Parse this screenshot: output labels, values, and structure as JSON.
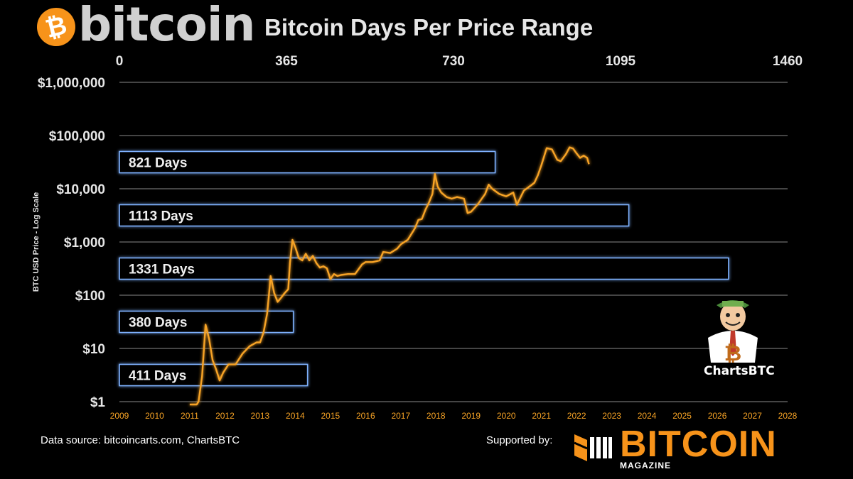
{
  "header": {
    "brand_symbol": "₿",
    "brand_word": "bitcoin",
    "title": "Bitcoin Days Per Price Range"
  },
  "footer": {
    "data_source": "Data source: bitcoincarts.com, ChartsBTC",
    "supported_by": "Supported by:",
    "magazine_word": "BITCOIN",
    "magazine_sub": "MAGAZINE"
  },
  "mascot": {
    "label": "ChartsBTC",
    "icon": "cartoon-trader-mascot-icon"
  },
  "colors": {
    "background": "#000000",
    "price_line": "#f7a325",
    "bar_border": "#4f7fc8",
    "bar_glow": "#7fb2ff",
    "grid": "#8a8a8a",
    "year_label": "#f7a325",
    "brand_orange": "#f7931a"
  },
  "chart_data": {
    "type": "line",
    "title": "Bitcoin Days Per Price Range",
    "ylabel": "BTC USD Price - Log Scale",
    "y_scale": "log",
    "ylim": [
      1,
      1000000
    ],
    "y_ticks": [
      1,
      10,
      100,
      1000,
      10000,
      100000,
      1000000
    ],
    "y_tick_labels": [
      "$1",
      "$10",
      "$100",
      "$1,000",
      "$10,000",
      "$100,000",
      "$1,000,000"
    ],
    "xlim": [
      2009,
      2028
    ],
    "x_ticks": [
      2009,
      2010,
      2011,
      2012,
      2013,
      2014,
      2015,
      2016,
      2017,
      2018,
      2019,
      2020,
      2021,
      2022,
      2023,
      2024,
      2025,
      2026,
      2027,
      2028
    ],
    "top_axis": {
      "label_type": "days",
      "range": [
        0,
        1460
      ],
      "ticks": [
        0,
        365,
        730,
        1095,
        1460
      ]
    },
    "grid": "horizontal",
    "days_bars": [
      {
        "label": "821 Days",
        "days": 821,
        "price_min": 10000,
        "price_max": 100000
      },
      {
        "label": "1113 Days",
        "days": 1113,
        "price_min": 1000,
        "price_max": 10000
      },
      {
        "label": "1331 Days",
        "days": 1331,
        "price_min": 100,
        "price_max": 1000
      },
      {
        "label": "380 Days",
        "days": 380,
        "price_min": 10,
        "price_max": 100
      },
      {
        "label": "411 Days",
        "days": 411,
        "price_min": 1,
        "price_max": 10
      }
    ],
    "series": [
      {
        "x": [
          2011.0,
          2011.2,
          2011.25,
          2011.35,
          2011.45,
          2011.55,
          2011.65,
          2011.75,
          2011.85,
          2011.95,
          2012.1,
          2012.3,
          2012.5,
          2012.7,
          2012.9,
          2013.0,
          2013.1,
          2013.2,
          2013.25,
          2013.3,
          2013.4,
          2013.5,
          2013.6,
          2013.7,
          2013.8,
          2013.85,
          2013.92,
          2014.0,
          2014.1,
          2014.2,
          2014.3,
          2014.4,
          2014.5,
          2014.6,
          2014.7,
          2014.8,
          2014.9,
          2015.0,
          2015.1,
          2015.2,
          2015.3,
          2015.5,
          2015.7,
          2015.9,
          2016.0,
          2016.2,
          2016.4,
          2016.5,
          2016.7,
          2016.9,
          2017.0,
          2017.2,
          2017.4,
          2017.5,
          2017.6,
          2017.7,
          2017.8,
          2017.9,
          2017.97,
          2018.05,
          2018.15,
          2018.3,
          2018.45,
          2018.6,
          2018.8,
          2018.9,
          2019.0,
          2019.2,
          2019.4,
          2019.5,
          2019.6,
          2019.8,
          2020.0,
          2020.2,
          2020.3,
          2020.5,
          2020.7,
          2020.8,
          2020.9,
          2021.0,
          2021.15,
          2021.3,
          2021.45,
          2021.55,
          2021.7,
          2021.8,
          2021.9,
          2022.0,
          2022.1,
          2022.2,
          2022.3,
          2022.35
        ],
        "values": [
          0.3,
          0.8,
          1.0,
          3.0,
          28,
          15,
          6,
          4,
          2.5,
          3.5,
          5,
          5,
          8,
          11,
          13,
          13,
          20,
          45,
          100,
          230,
          110,
          75,
          90,
          110,
          130,
          400,
          1100,
          800,
          500,
          450,
          600,
          450,
          550,
          400,
          330,
          350,
          320,
          200,
          250,
          230,
          240,
          250,
          250,
          380,
          420,
          420,
          450,
          650,
          620,
          750,
          900,
          1100,
          1800,
          2600,
          2700,
          4000,
          5500,
          8000,
          19000,
          11000,
          8500,
          7000,
          6500,
          7000,
          6500,
          3500,
          3700,
          5200,
          8000,
          12000,
          10000,
          8000,
          7200,
          8500,
          5000,
          9200,
          11500,
          13000,
          18000,
          28000,
          58000,
          55000,
          35000,
          33000,
          45000,
          60000,
          57000,
          46000,
          38000,
          42000,
          38000,
          29000
        ]
      }
    ]
  }
}
